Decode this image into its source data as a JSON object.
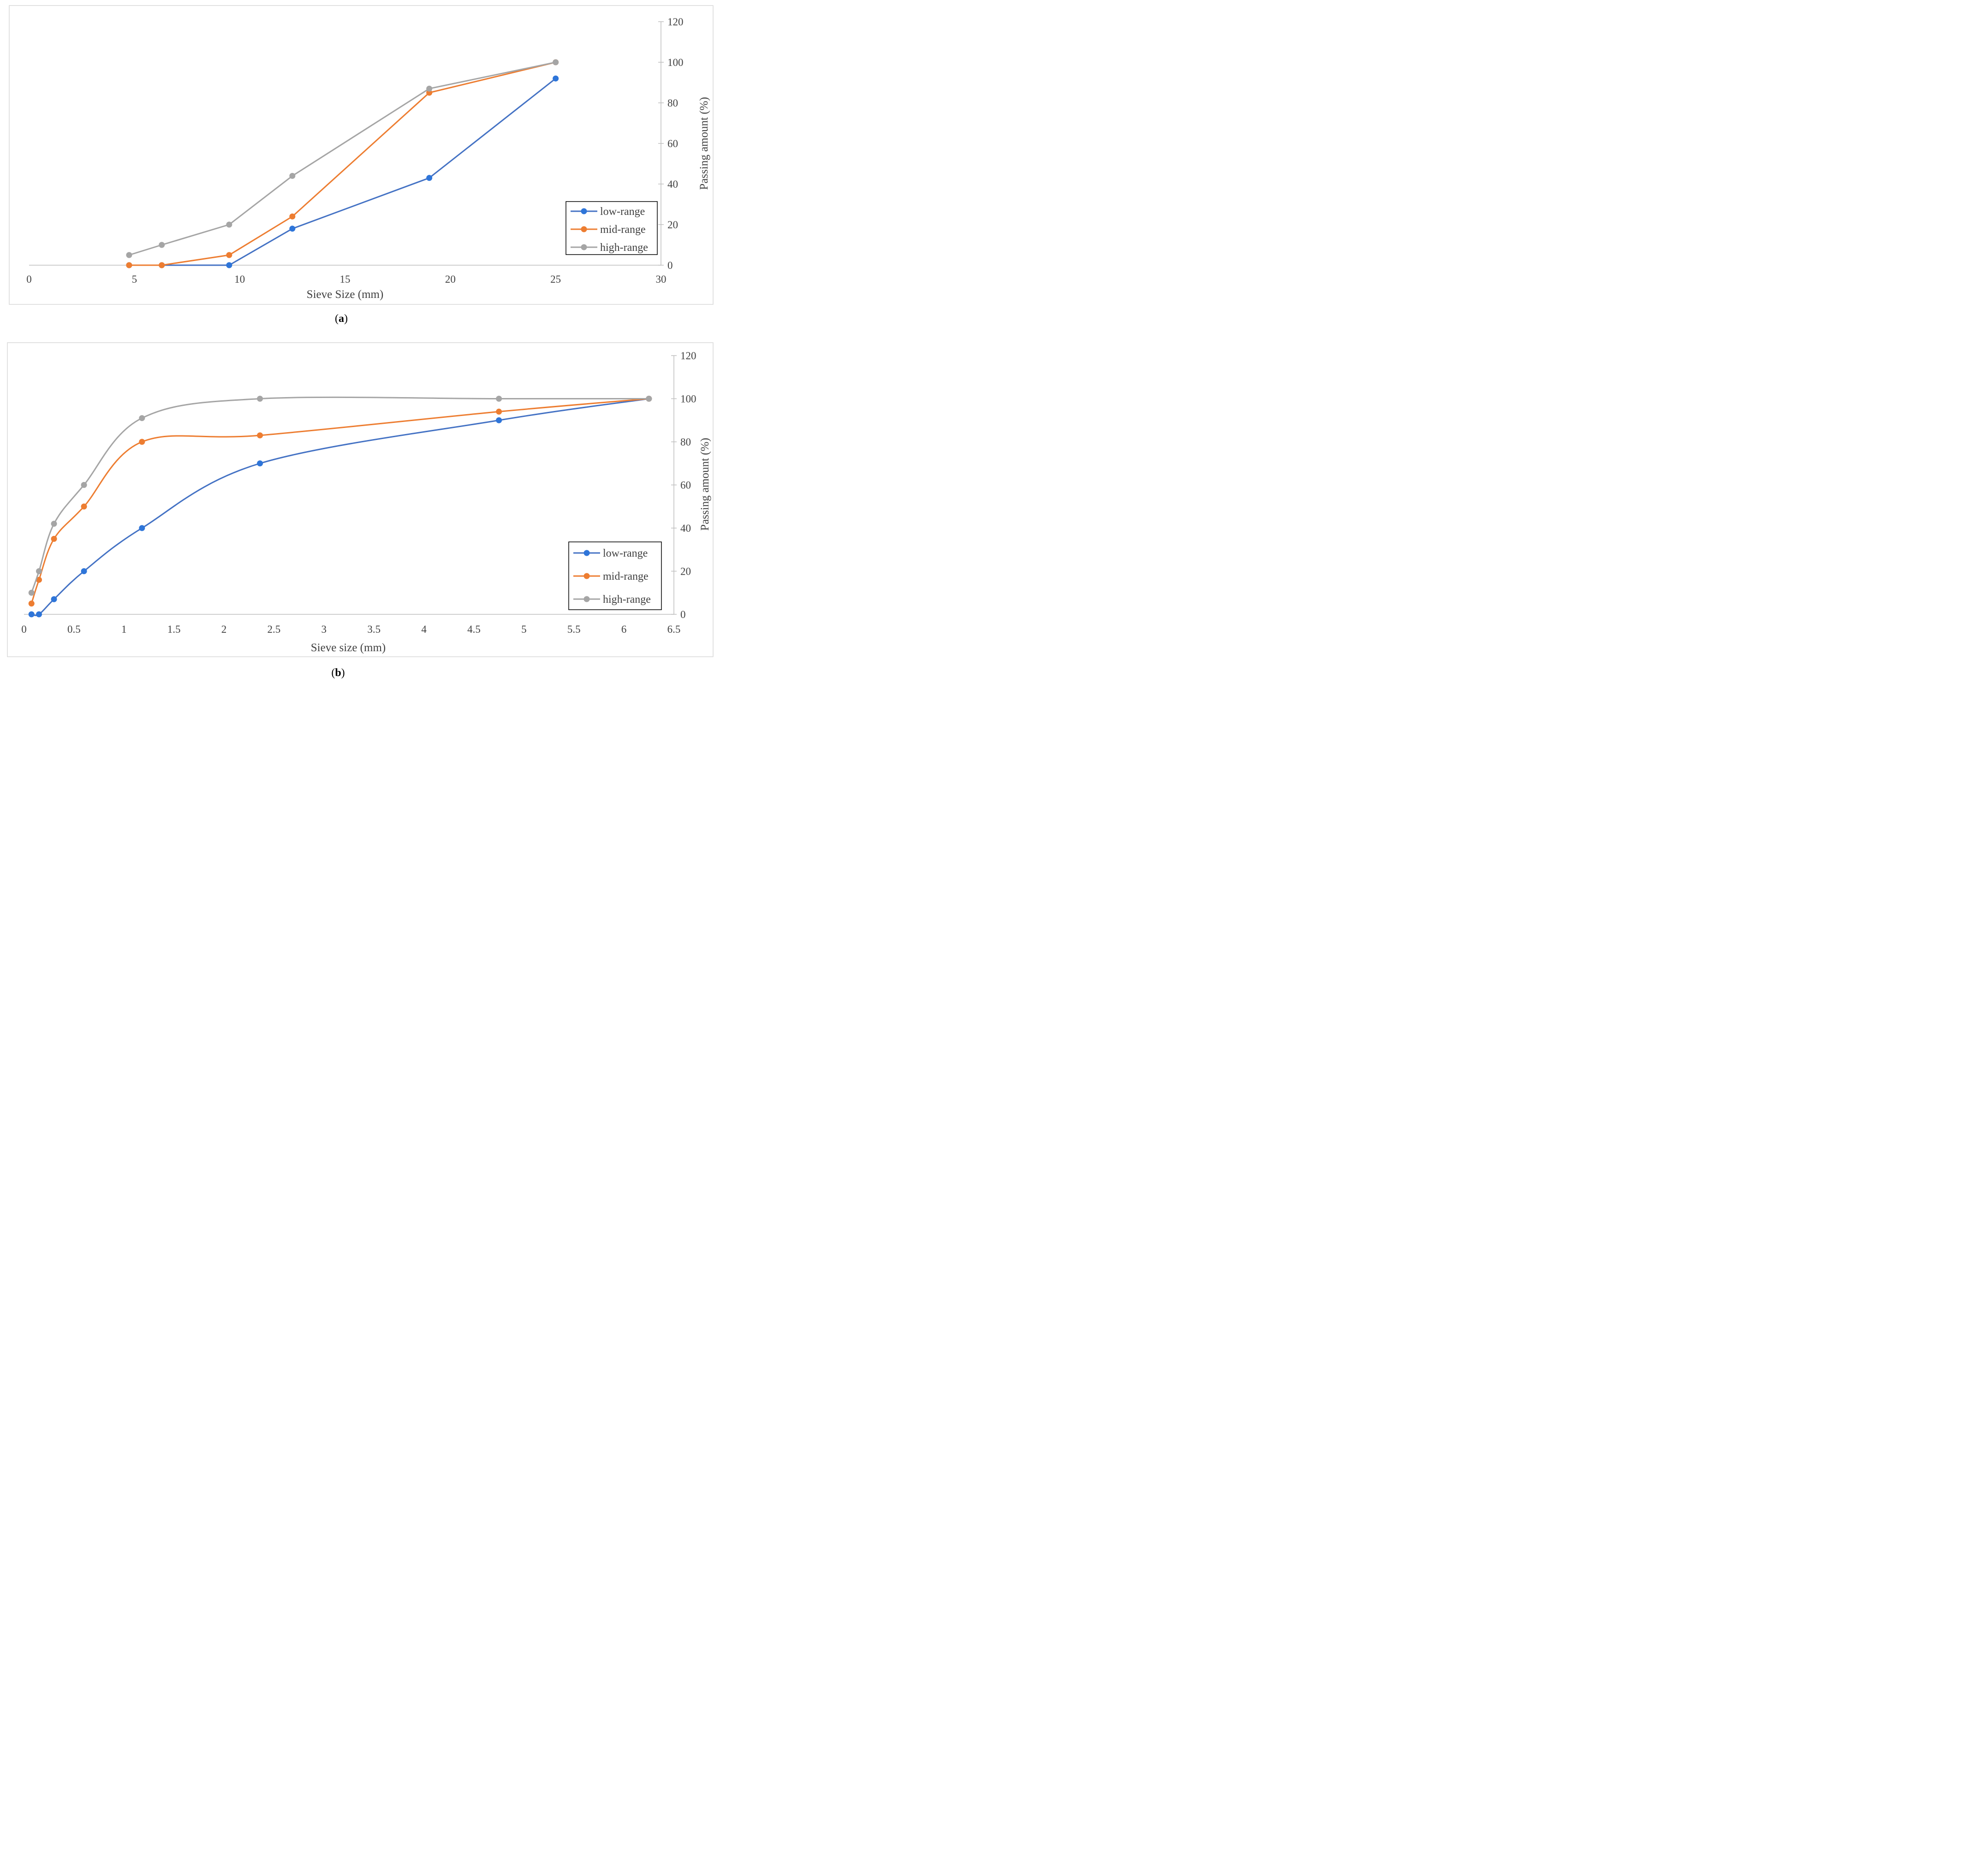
{
  "chart_data": [
    {
      "id": "a",
      "type": "line",
      "smooth": false,
      "caption_open": "(",
      "caption_letter": "a",
      "caption_close": ")",
      "xlabel": "Sieve Size (mm)",
      "ylabel": "Passing amount (%)",
      "xlim": [
        0,
        30
      ],
      "ylim": [
        0,
        120
      ],
      "xticks": [
        "0",
        "5",
        "10",
        "15",
        "20",
        "25",
        "30"
      ],
      "xtick_values": [
        0,
        5,
        10,
        15,
        20,
        25,
        30
      ],
      "yticks": [
        "0",
        "20",
        "40",
        "60",
        "80",
        "100",
        "120"
      ],
      "ytick_values": [
        0,
        20,
        40,
        60,
        80,
        100,
        120
      ],
      "yaxis_side": "right",
      "legend_position": "right-lower",
      "series": [
        {
          "name": "low-range",
          "color": "#4472c4",
          "marker_color": "#2e75d9",
          "x": [
            4.75,
            6.3,
            9.5,
            12.5,
            19,
            25
          ],
          "y": [
            0,
            0,
            0,
            18,
            43,
            92
          ]
        },
        {
          "name": "mid-range",
          "color": "#ed7d31",
          "x": [
            4.75,
            6.3,
            9.5,
            12.5,
            19,
            25
          ],
          "y": [
            0,
            0,
            5,
            24,
            85,
            100
          ]
        },
        {
          "name": "high-range",
          "color": "#a5a5a5",
          "x": [
            4.75,
            6.3,
            9.5,
            12.5,
            19,
            25
          ],
          "y": [
            5,
            10,
            20,
            44,
            87,
            100
          ]
        }
      ]
    },
    {
      "id": "b",
      "type": "line",
      "smooth": true,
      "caption_open": "(",
      "caption_letter": "b",
      "caption_close": ")",
      "xlabel": "Sieve size (mm)",
      "ylabel": "Passing amount (%)",
      "xlim": [
        0,
        6.5
      ],
      "ylim": [
        0,
        120
      ],
      "xticks": [
        "0",
        "0.5",
        "1",
        "1.5",
        "2",
        "2.5",
        "3",
        "3.5",
        "4",
        "4.5",
        "5",
        "5.5",
        "6",
        "6.5"
      ],
      "xtick_values": [
        0,
        0.5,
        1,
        1.5,
        2,
        2.5,
        3,
        3.5,
        4,
        4.5,
        5,
        5.5,
        6,
        6.5
      ],
      "yticks": [
        "0",
        "20",
        "40",
        "60",
        "80",
        "100",
        "120"
      ],
      "ytick_values": [
        0,
        20,
        40,
        60,
        80,
        100,
        120
      ],
      "yaxis_side": "right",
      "legend_position": "right-lower",
      "series": [
        {
          "name": "low-range",
          "color": "#4472c4",
          "marker_color": "#2e75d9",
          "x": [
            0.075,
            0.15,
            0.3,
            0.6,
            1.18,
            2.36,
            4.75,
            6.25
          ],
          "y": [
            0,
            0,
            7,
            20,
            40,
            70,
            90,
            100
          ]
        },
        {
          "name": "mid-range",
          "color": "#ed7d31",
          "x": [
            0.075,
            0.15,
            0.3,
            0.6,
            1.18,
            2.36,
            4.75,
            6.25
          ],
          "y": [
            5,
            16,
            35,
            50,
            80,
            83,
            94,
            100
          ]
        },
        {
          "name": "high-range",
          "color": "#a5a5a5",
          "x": [
            0.075,
            0.15,
            0.3,
            0.6,
            1.18,
            2.36,
            4.75,
            6.25
          ],
          "y": [
            10,
            20,
            42,
            60,
            91,
            100,
            100,
            100
          ]
        }
      ]
    }
  ]
}
